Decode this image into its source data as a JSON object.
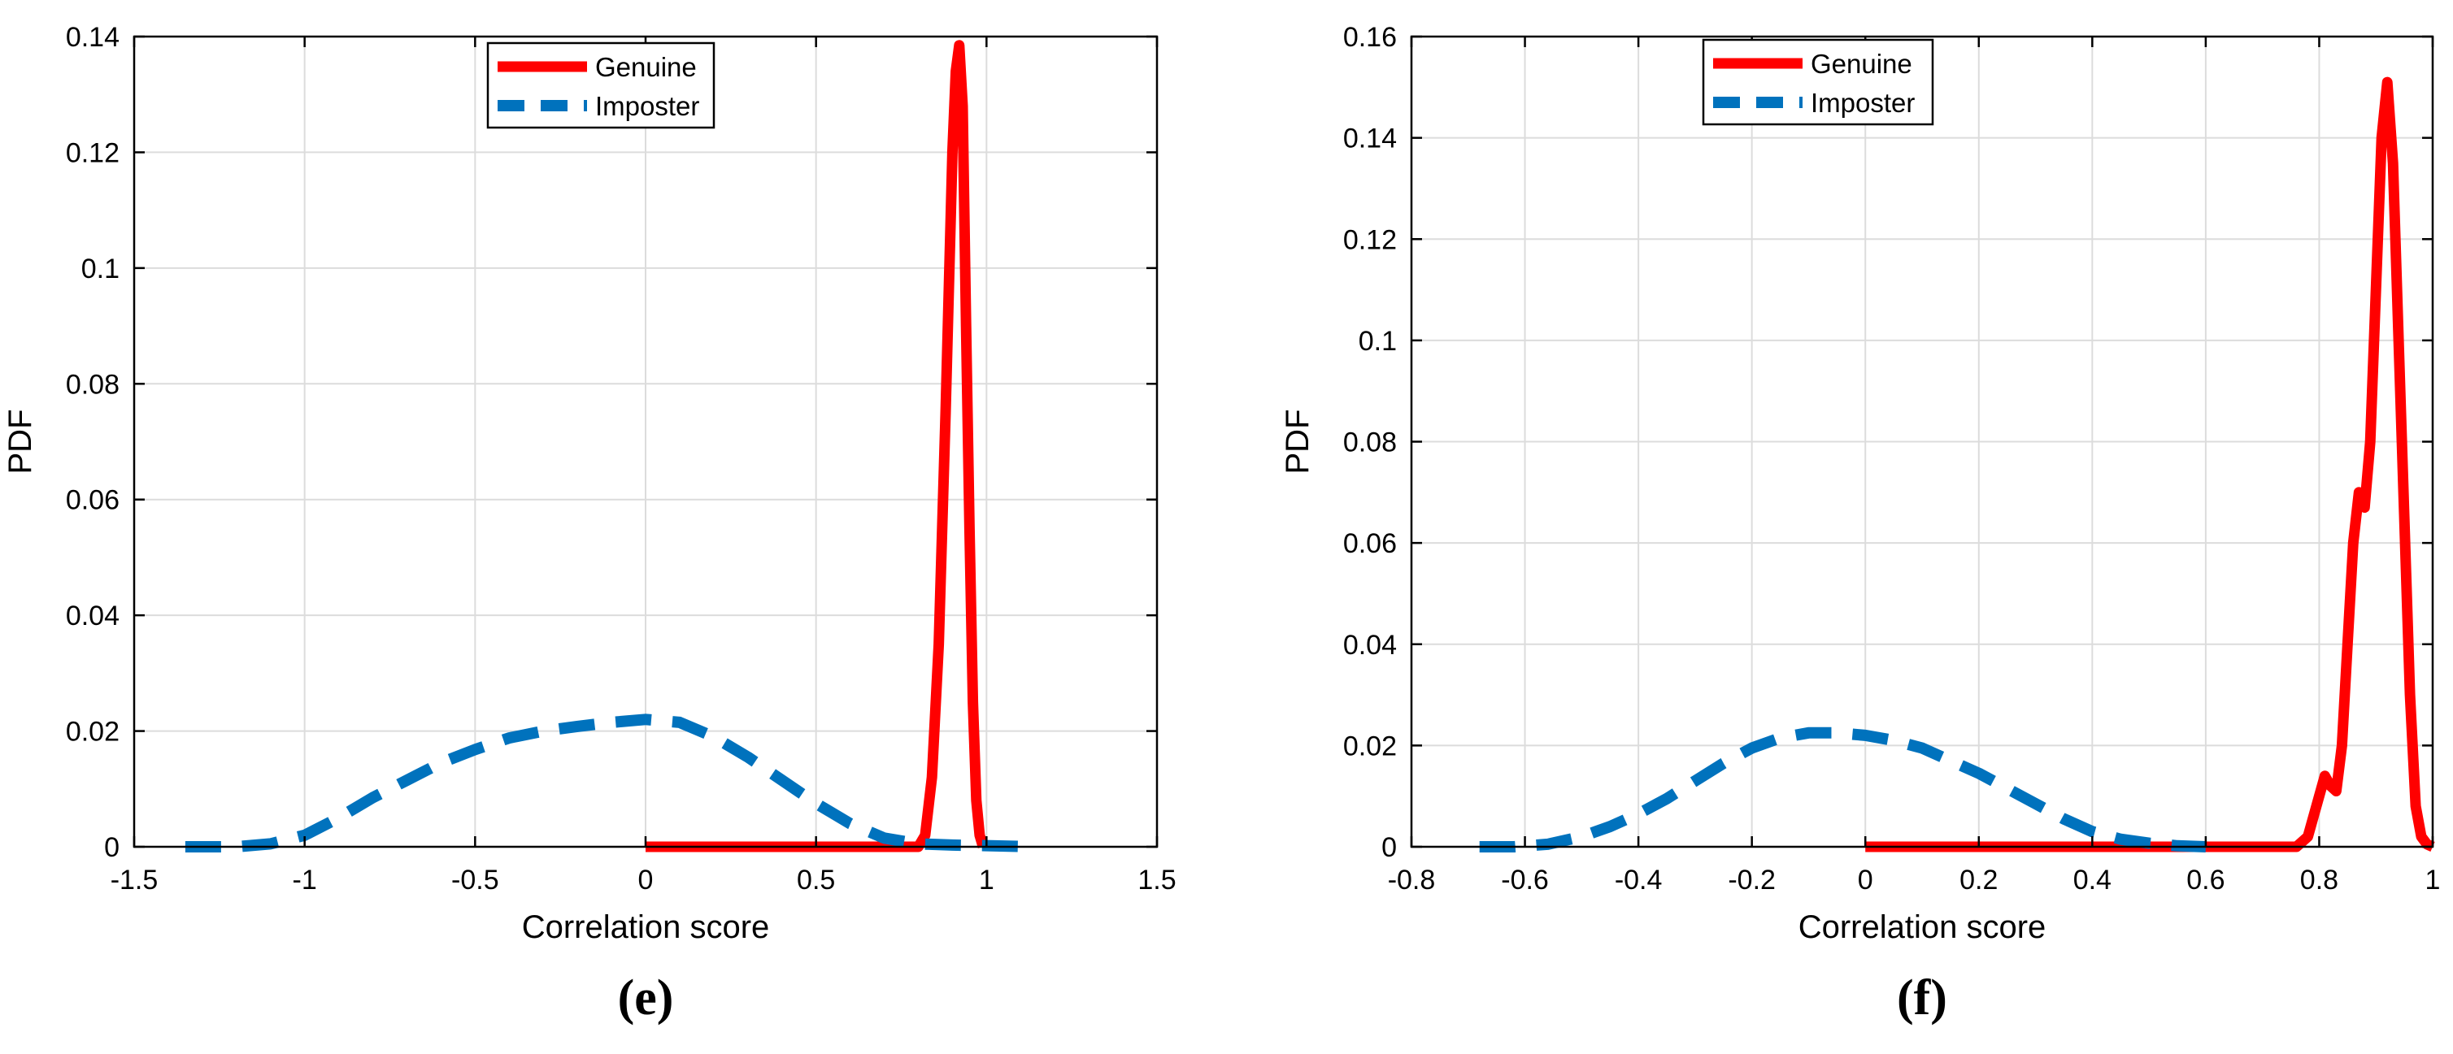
{
  "chart_data": [
    {
      "type": "line",
      "panel_label": "(e)",
      "xlabel": "Correlation score",
      "ylabel": "PDF",
      "xlim": [
        -1.5,
        1.5
      ],
      "ylim": [
        0,
        0.14
      ],
      "xticks": [
        -1.5,
        -1,
        -0.5,
        0,
        0.5,
        1,
        1.5
      ],
      "xtick_labels": [
        "-1.5",
        "-1",
        "-0.5",
        "0",
        "0.5",
        "1",
        "1.5"
      ],
      "yticks": [
        0,
        0.02,
        0.04,
        0.06,
        0.08,
        0.1,
        0.12,
        0.14
      ],
      "ytick_labels": [
        "0",
        "0.02",
        "0.04",
        "0.06",
        "0.08",
        "0.1",
        "0.12",
        "0.14"
      ],
      "grid": true,
      "legend_position": "top-center",
      "series": [
        {
          "name": "Genuine",
          "color": "#ff0000",
          "style": "solid",
          "x": [
            0,
            0.5,
            0.8,
            0.82,
            0.84,
            0.86,
            0.88,
            0.9,
            0.91,
            0.92,
            0.93,
            0.94,
            0.95,
            0.96,
            0.97,
            0.98,
            0.99
          ],
          "y": [
            0,
            0,
            0,
            0.002,
            0.012,
            0.035,
            0.075,
            0.12,
            0.134,
            0.1385,
            0.128,
            0.09,
            0.055,
            0.025,
            0.008,
            0.002,
            0
          ]
        },
        {
          "name": "Imposter",
          "color": "#0072bd",
          "style": "dashed",
          "x": [
            -1.35,
            -1.2,
            -1.1,
            -1.0,
            -0.9,
            -0.8,
            -0.7,
            -0.6,
            -0.5,
            -0.4,
            -0.3,
            -0.2,
            -0.1,
            0.0,
            0.1,
            0.2,
            0.3,
            0.4,
            0.5,
            0.6,
            0.7,
            0.8,
            0.9,
            1.0,
            1.15
          ],
          "y": [
            0,
            0,
            0.0005,
            0.002,
            0.005,
            0.0085,
            0.0115,
            0.0145,
            0.0168,
            0.0188,
            0.02,
            0.0208,
            0.0215,
            0.022,
            0.0215,
            0.019,
            0.0155,
            0.0115,
            0.0075,
            0.004,
            0.0015,
            0.0005,
            0.0003,
            0.0002,
            0
          ]
        }
      ]
    },
    {
      "type": "line",
      "panel_label": "(f)",
      "xlabel": "Correlation score",
      "ylabel": "PDF",
      "xlim": [
        -0.8,
        1.0
      ],
      "ylim": [
        0,
        0.16
      ],
      "xticks": [
        -0.8,
        -0.6,
        -0.4,
        -0.2,
        0,
        0.2,
        0.4,
        0.6,
        0.8,
        1.0
      ],
      "xtick_labels": [
        "-0.8",
        "-0.6",
        "-0.4",
        "-0.2",
        "0",
        "0.2",
        "0.4",
        "0.6",
        "0.8",
        "1"
      ],
      "yticks": [
        0,
        0.02,
        0.04,
        0.06,
        0.08,
        0.1,
        0.12,
        0.14,
        0.16
      ],
      "ytick_labels": [
        "0",
        "0.02",
        "0.04",
        "0.06",
        "0.08",
        "0.1",
        "0.12",
        "0.14",
        "0.16"
      ],
      "grid": true,
      "legend_position": "top-left",
      "series": [
        {
          "name": "Genuine",
          "color": "#ff0000",
          "style": "solid",
          "x": [
            0,
            0.5,
            0.76,
            0.78,
            0.8,
            0.81,
            0.82,
            0.83,
            0.84,
            0.85,
            0.86,
            0.87,
            0.88,
            0.89,
            0.9,
            0.91,
            0.92,
            0.93,
            0.94,
            0.95,
            0.96,
            0.97,
            0.98,
            0.99,
            1.0
          ],
          "y": [
            0,
            0,
            0,
            0.002,
            0.01,
            0.014,
            0.012,
            0.011,
            0.02,
            0.04,
            0.06,
            0.07,
            0.067,
            0.08,
            0.11,
            0.14,
            0.151,
            0.135,
            0.1,
            0.065,
            0.03,
            0.008,
            0.002,
            0.0005,
            0
          ]
        },
        {
          "name": "Imposter",
          "color": "#0072bd",
          "style": "dashed",
          "x": [
            -0.68,
            -0.62,
            -0.56,
            -0.5,
            -0.45,
            -0.4,
            -0.35,
            -0.3,
            -0.25,
            -0.2,
            -0.15,
            -0.1,
            -0.05,
            0.0,
            0.05,
            0.1,
            0.15,
            0.2,
            0.25,
            0.3,
            0.35,
            0.4,
            0.45,
            0.5,
            0.55,
            0.6
          ],
          "y": [
            0,
            0,
            0.0005,
            0.002,
            0.004,
            0.0065,
            0.0095,
            0.013,
            0.0165,
            0.0195,
            0.0215,
            0.0225,
            0.0225,
            0.022,
            0.021,
            0.0195,
            0.017,
            0.0145,
            0.0115,
            0.0085,
            0.0055,
            0.003,
            0.0015,
            0.0007,
            0.0002,
            0
          ]
        }
      ]
    }
  ]
}
